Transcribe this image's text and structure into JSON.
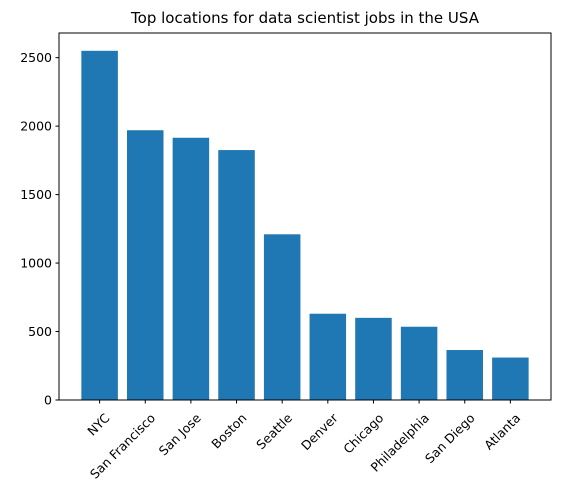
{
  "chart_data": {
    "type": "bar",
    "title": "Top locations for data scientist jobs in the USA",
    "xlabel": "",
    "ylabel": "",
    "categories": [
      "NYC",
      "San Francisco",
      "San Jose",
      "Boston",
      "Seattle",
      "Denver",
      "Chicago",
      "Philadelphia",
      "San Diego",
      "Atlanta"
    ],
    "values": [
      2550,
      1970,
      1915,
      1825,
      1210,
      630,
      600,
      535,
      365,
      310
    ],
    "ylim": [
      0,
      2680
    ],
    "yticks": [
      0,
      500,
      1000,
      1500,
      2000,
      2500
    ],
    "ytick_labels": [
      "0",
      "500",
      "1000",
      "1500",
      "2000",
      "2500"
    ],
    "grid": false,
    "colors": {
      "bar": "#1f77b4",
      "axes": "#000000"
    }
  }
}
